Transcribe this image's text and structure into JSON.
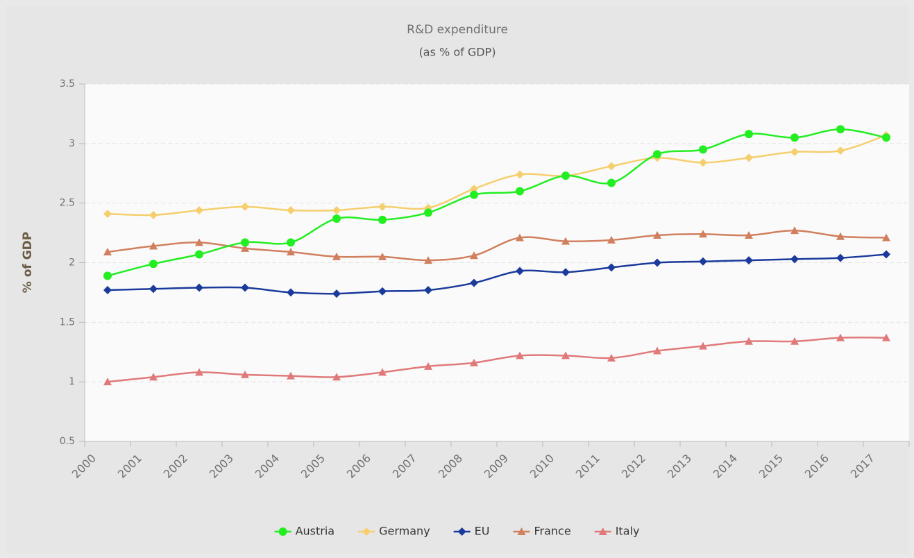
{
  "chart_data": {
    "type": "line",
    "title": "R&D expenditure",
    "subtitle": "(as % of GDP)",
    "y_label": "% of GDP",
    "categories": [
      "2000",
      "2001",
      "2002",
      "2003",
      "2004",
      "2005",
      "2006",
      "2007",
      "2008",
      "2009",
      "2010",
      "2011",
      "2012",
      "2013",
      "2014",
      "2015",
      "2016",
      "2017"
    ],
    "series": [
      {
        "name": "Austria",
        "color": "#22ee22",
        "marker": "circle",
        "values": [
          1.89,
          1.99,
          2.07,
          2.17,
          2.17,
          2.37,
          2.36,
          2.42,
          2.57,
          2.6,
          2.73,
          2.67,
          2.91,
          2.95,
          3.08,
          3.05,
          3.12,
          3.05
        ]
      },
      {
        "name": "Germany",
        "color": "#f5cf6e",
        "marker": "diamond",
        "values": [
          2.41,
          2.4,
          2.44,
          2.47,
          2.44,
          2.44,
          2.47,
          2.46,
          2.62,
          2.74,
          2.73,
          2.81,
          2.88,
          2.84,
          2.88,
          2.93,
          2.94,
          3.07
        ]
      },
      {
        "name": "EU",
        "color": "#1a3a9c",
        "marker": "diamond",
        "values": [
          1.77,
          1.78,
          1.79,
          1.79,
          1.75,
          1.74,
          1.76,
          1.77,
          1.83,
          1.93,
          1.92,
          1.96,
          2.0,
          2.01,
          2.02,
          2.03,
          2.04,
          2.07
        ]
      },
      {
        "name": "France",
        "color": "#d0805e",
        "marker": "triangle",
        "values": [
          2.09,
          2.14,
          2.17,
          2.12,
          2.09,
          2.05,
          2.05,
          2.02,
          2.06,
          2.21,
          2.18,
          2.19,
          2.23,
          2.24,
          2.23,
          2.27,
          2.22,
          2.21
        ]
      },
      {
        "name": "Italy",
        "color": "#e07a7a",
        "marker": "triangle",
        "values": [
          1.0,
          1.04,
          1.08,
          1.06,
          1.05,
          1.04,
          1.08,
          1.13,
          1.16,
          1.22,
          1.22,
          1.2,
          1.26,
          1.3,
          1.34,
          1.34,
          1.37,
          1.37
        ]
      }
    ],
    "ylim": [
      0.5,
      3.5
    ],
    "yticks": [
      0.5,
      1,
      1.5,
      2,
      2.5,
      3,
      3.5
    ],
    "grid": true,
    "legend": "bottom"
  }
}
